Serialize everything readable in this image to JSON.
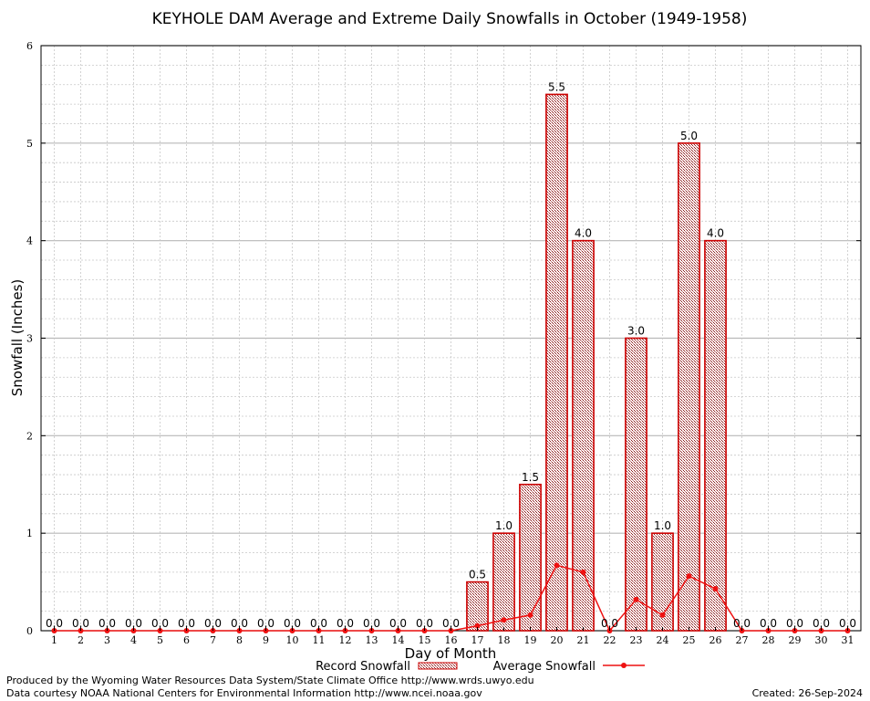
{
  "chart_data": {
    "type": "bar",
    "title": "KEYHOLE DAM Average and Extreme Daily Snowfalls in October (1949-1958)",
    "xlabel": "Day of Month",
    "ylabel": "Snowfall (Inches)",
    "ylim": [
      0,
      6
    ],
    "yticks": [
      0,
      1,
      2,
      3,
      4,
      5,
      6
    ],
    "grid": true,
    "legend_placement": "bottom",
    "categories": [
      "1",
      "2",
      "3",
      "4",
      "5",
      "6",
      "7",
      "8",
      "9",
      "10",
      "11",
      "12",
      "13",
      "14",
      "15",
      "16",
      "17",
      "18",
      "19",
      "20",
      "21",
      "22",
      "23",
      "24",
      "25",
      "26",
      "27",
      "28",
      "29",
      "30",
      "31"
    ],
    "series": [
      {
        "name": "Record Snowfall",
        "kind": "bar",
        "color": "#cc0000",
        "values": [
          0,
          0,
          0,
          0,
          0,
          0,
          0,
          0,
          0,
          0,
          0,
          0,
          0,
          0,
          0,
          0,
          0.5,
          1.0,
          1.5,
          5.5,
          4.0,
          0,
          3.0,
          1.0,
          5.0,
          4.0,
          0,
          0,
          0,
          0,
          0
        ],
        "labels": [
          "0.0",
          "0.0",
          "0.0",
          "0.0",
          "0.0",
          "0.0",
          "0.0",
          "0.0",
          "0.0",
          "0.0",
          "0.0",
          "0.0",
          "0.0",
          "0.0",
          "0.0",
          "0.0",
          "0.5",
          "1.0",
          "1.5",
          "5.5",
          "4.0",
          "0.0",
          "3.0",
          "1.0",
          "5.0",
          "4.0",
          "0.0",
          "0.0",
          "0.0",
          "0.0",
          "0.0"
        ]
      },
      {
        "name": "Average Snowfall",
        "kind": "line",
        "color": "#ee1111",
        "values": [
          0,
          0,
          0,
          0,
          0,
          0,
          0,
          0,
          0,
          0,
          0,
          0,
          0,
          0,
          0,
          0,
          0.05,
          0.11,
          0.16,
          0.67,
          0.6,
          0,
          0.32,
          0.16,
          0.56,
          0.43,
          0,
          0,
          0,
          0,
          0
        ]
      }
    ]
  },
  "footer": {
    "left_line1": "Produced by the Wyoming Water Resources Data System/State Climate Office http://www.wrds.uwyo.edu",
    "left_line2": "Data courtesy NOAA National Centers for Environmental Information http://www.ncei.noaa.gov",
    "created": "Created: 26-Sep-2024"
  }
}
